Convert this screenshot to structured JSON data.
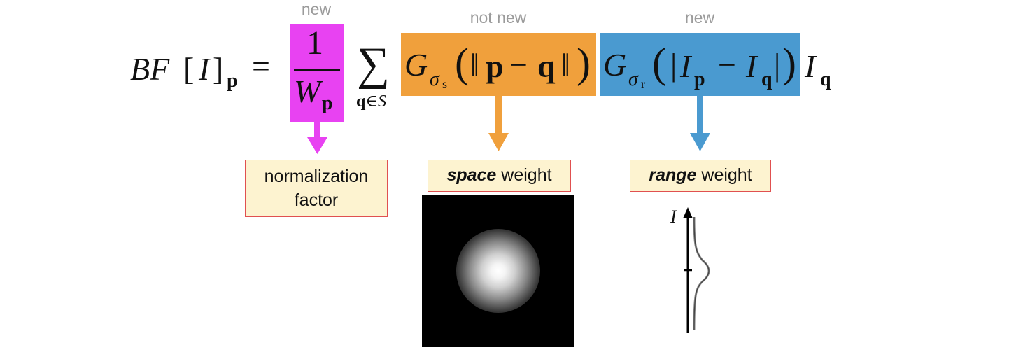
{
  "headers": {
    "normalization": "new",
    "space": "not new",
    "range": "new"
  },
  "formula": {
    "lhs_bf": "BF",
    "lhs_bracket_open": "[",
    "lhs_i": "I",
    "lhs_bracket_close": "]",
    "lhs_sub": "p",
    "equals": "=",
    "frac_num": "1",
    "frac_den_w": "W",
    "frac_den_sub": "p",
    "sum_symbol": "∑",
    "sum_sub_q": "q",
    "sum_sub_in": "∈",
    "sum_sub_s": "S",
    "space_g": "G",
    "space_sigma": "σ",
    "space_sigma_sub": "s",
    "space_paren_open": "(",
    "space_norm_open": "‖",
    "space_p": "p",
    "space_minus": "−",
    "space_q": "q",
    "space_norm_close": "‖",
    "space_paren_close": ")",
    "range_g": "G",
    "range_sigma": "σ",
    "range_sigma_sub": "r",
    "range_paren_open": "(",
    "range_abs_open": "|",
    "range_i1": "I",
    "range_i1_sub": "p",
    "range_minus": "−",
    "range_i2": "I",
    "range_i2_sub": "q",
    "range_abs_close": "|",
    "range_paren_close": ")",
    "tail_i": "I",
    "tail_sub": "q"
  },
  "labels": {
    "normalization_line1": "normalization",
    "normalization_line2": "factor",
    "space_bold": "space",
    "space_rest": " weight",
    "range_bold": "range",
    "range_rest": " weight"
  },
  "range_plot": {
    "axis_label": "I"
  },
  "colors": {
    "normalization": "#e842f2",
    "space": "#f0a03c",
    "range": "#4a9ad0",
    "label_fill": "#fdf3d0",
    "label_border": "#e05050",
    "header_text": "#9b9b9b"
  }
}
